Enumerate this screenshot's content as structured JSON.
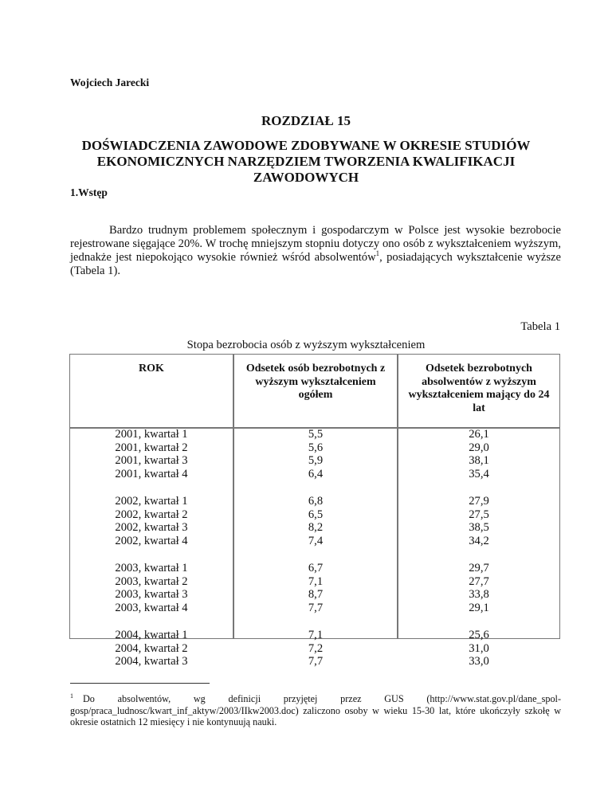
{
  "author": "Wojciech Jarecki",
  "chapter": "ROZDZIAŁ 15",
  "title": "DOŚWIADCZENIA ZAWODOWE ZDOBYWANE W OKRESIE STUDIÓW EKONOMICZNYCH NARZĘDZIEM TWORZENIA KWALIFIKACJI ZAWODOWYCH",
  "section": "1.Wstęp",
  "paragraph": {
    "text": "Bardzo trudnym problemem społecznym i gospodarczym w Polsce jest wysokie bezrobocie rejestrowane sięgające 20%. W trochę mniejszym stopniu dotyczy ono osób z wykształceniem wyższym, jednakże jest niepokojąco wysokie również wśród absolwentów",
    "footnote_ref": "1",
    "tail": ", posiadających wykształcenie wyższe (Tabela 1)."
  },
  "table": {
    "number": "Tabela 1",
    "caption": "Stopa bezrobocia osób z wyższym wykształceniem",
    "headers": [
      "ROK",
      "Odsetek osób bezrobotnych z wyższym wykształceniem ogółem",
      "Odsetek bezrobotnych absolwentów z wyższym wykształceniem mający do 24 lat"
    ],
    "groups": [
      {
        "rows": [
          [
            "2001, kwartał 1",
            "5,5",
            "26,1"
          ],
          [
            "2001, kwartał 2",
            "5,6",
            "29,0"
          ],
          [
            "2001, kwartał 3",
            "5,9",
            "38,1"
          ],
          [
            "2001, kwartał 4",
            "6,4",
            "35,4"
          ]
        ]
      },
      {
        "rows": [
          [
            "2002, kwartał 1",
            "6,8",
            "27,9"
          ],
          [
            "2002, kwartał 2",
            "6,5",
            "27,5"
          ],
          [
            "2002, kwartał 3",
            "8,2",
            "38,5"
          ],
          [
            "2002, kwartał 4",
            "7,4",
            "34,2"
          ]
        ]
      },
      {
        "rows": [
          [
            "2003, kwartał 1",
            "6,7",
            "29,7"
          ],
          [
            "2003, kwartał 2",
            "7,1",
            "27,7"
          ],
          [
            "2003, kwartał 3",
            "8,7",
            "33,8"
          ],
          [
            "2003, kwartał 4",
            "7,7",
            "29,1"
          ]
        ]
      },
      {
        "rows": [
          [
            "2004, kwartał 1",
            "7,1",
            "25,6"
          ],
          [
            "2004, kwartał 2",
            "7,2",
            "31,0"
          ],
          [
            "2004, kwartał 3",
            "7,7",
            "33,0"
          ]
        ]
      }
    ]
  },
  "footnote": {
    "number": "1",
    "line1": "Do absolwentów, wg definicji przyjętej przez GUS (http://www.stat.gov.pl/dane_spol-",
    "rest": "gosp/praca_ludnosc/kwart_inf_aktyw/2003/IIkw2003.doc) zaliczono osoby w wieku 15-30 lat, które ukończyły szkołę w okresie ostatnich 12 miesięcy i nie kontynuują nauki."
  }
}
